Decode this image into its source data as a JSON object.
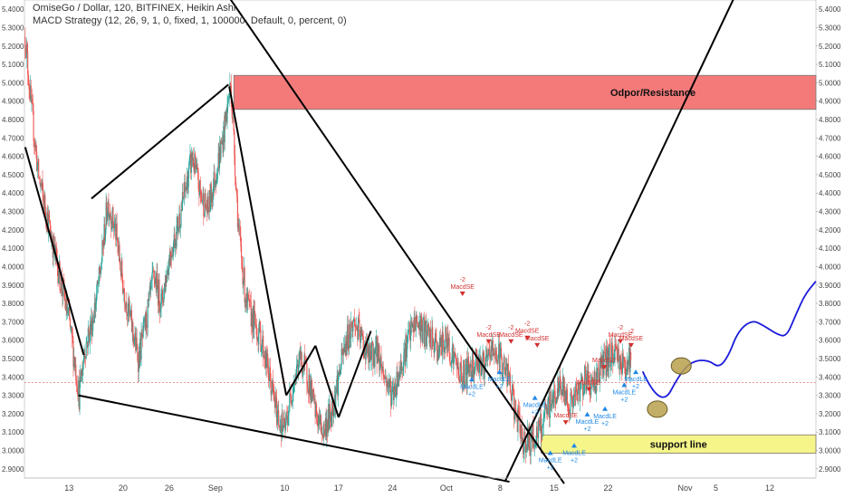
{
  "header": {
    "title": "OmiseGo / Dollar, 120, BITFINEX, Heikin Ashi",
    "indicator": "MACD Strategy (12, 26, 9, 1, 0, fixed, 1, 100000, Default, 0, percent, 0)"
  },
  "colors": {
    "up": "#26a69a",
    "down": "#ef5350",
    "resistance_zone": "#f47a7a",
    "support_zone": "#f5f58a",
    "trendline": "#000000",
    "projection": "#1a1adb",
    "highlight_circle": "#b8a04c",
    "sell_signal": "#d32f2f",
    "buy_signal": "#1e88e5",
    "price_line": "#e57373"
  },
  "chart_data": {
    "type": "candlestick",
    "ylim": [
      2.85,
      5.45
    ],
    "y_ticks": [
      "5.4000",
      "5.3000",
      "5.2000",
      "5.1000",
      "5.0000",
      "4.9000",
      "4.8000",
      "4.7000",
      "4.6000",
      "4.5000",
      "4.4000",
      "4.3000",
      "4.2000",
      "4.1000",
      "4.0000",
      "3.9000",
      "3.8000",
      "3.7000",
      "3.6000",
      "3.5000",
      "3.4000",
      "3.3000",
      "3.2000",
      "3.1000",
      "3.0000",
      "2.9000"
    ],
    "x_ticks": [
      {
        "label": "13",
        "day": 13
      },
      {
        "label": "20",
        "day": 20
      },
      {
        "label": "26",
        "day": 26
      },
      {
        "label": "Sep",
        "day": 32
      },
      {
        "label": "10",
        "day": 41
      },
      {
        "label": "17",
        "day": 48
      },
      {
        "label": "24",
        "day": 55
      },
      {
        "label": "Oct",
        "day": 62
      },
      {
        "label": "8",
        "day": 69
      },
      {
        "label": "15",
        "day": 76
      },
      {
        "label": "22",
        "day": 83
      },
      {
        "label": "Nov",
        "day": 93
      },
      {
        "label": "5",
        "day": 97
      },
      {
        "label": "12",
        "day": 104
      }
    ],
    "x_range_days": [
      7.2,
      110.0
    ],
    "price_anchors": [
      [
        7.3,
        5.25
      ],
      [
        8.0,
        4.9
      ],
      [
        9.0,
        4.5
      ],
      [
        10.0,
        4.3
      ],
      [
        11.0,
        4.1
      ],
      [
        12.0,
        3.9
      ],
      [
        13.0,
        3.7
      ],
      [
        14.0,
        3.4
      ],
      [
        14.3,
        3.3
      ],
      [
        15.0,
        3.55
      ],
      [
        16.0,
        3.7
      ],
      [
        17.0,
        3.95
      ],
      [
        18.0,
        4.35
      ],
      [
        19.0,
        4.2
      ],
      [
        20.0,
        3.9
      ],
      [
        21.0,
        3.7
      ],
      [
        22.0,
        3.5
      ],
      [
        23.0,
        3.7
      ],
      [
        24.0,
        3.95
      ],
      [
        25.0,
        3.8
      ],
      [
        26.0,
        4.05
      ],
      [
        27.0,
        4.2
      ],
      [
        28.0,
        4.4
      ],
      [
        29.0,
        4.6
      ],
      [
        30.0,
        4.4
      ],
      [
        31.0,
        4.3
      ],
      [
        32.0,
        4.5
      ],
      [
        33.0,
        4.7
      ],
      [
        34.0,
        5.0
      ],
      [
        34.5,
        4.6
      ],
      [
        35.0,
        4.2
      ],
      [
        36.0,
        3.8
      ],
      [
        37.0,
        3.7
      ],
      [
        38.0,
        3.6
      ],
      [
        39.0,
        3.4
      ],
      [
        40.0,
        3.2
      ],
      [
        41.0,
        3.1
      ],
      [
        42.0,
        3.35
      ],
      [
        43.0,
        3.5
      ],
      [
        44.0,
        3.4
      ],
      [
        45.0,
        3.2
      ],
      [
        46.0,
        3.1
      ],
      [
        47.0,
        3.2
      ],
      [
        48.0,
        3.4
      ],
      [
        49.0,
        3.6
      ],
      [
        50.0,
        3.7
      ],
      [
        51.0,
        3.6
      ],
      [
        52.0,
        3.5
      ],
      [
        53.0,
        3.55
      ],
      [
        54.0,
        3.4
      ],
      [
        55.0,
        3.3
      ],
      [
        56.0,
        3.45
      ],
      [
        57.0,
        3.6
      ],
      [
        58.0,
        3.7
      ],
      [
        59.0,
        3.65
      ],
      [
        60.0,
        3.6
      ],
      [
        61.0,
        3.55
      ],
      [
        62.0,
        3.6
      ],
      [
        63.0,
        3.5
      ],
      [
        64.0,
        3.4
      ],
      [
        65.0,
        3.45
      ],
      [
        66.0,
        3.5
      ],
      [
        67.0,
        3.45
      ],
      [
        68.0,
        3.55
      ],
      [
        69.0,
        3.5
      ],
      [
        70.0,
        3.4
      ],
      [
        71.0,
        3.2
      ],
      [
        72.0,
        3.05
      ],
      [
        73.0,
        3.05
      ],
      [
        74.0,
        3.1
      ],
      [
        75.0,
        3.2
      ],
      [
        76.0,
        3.3
      ],
      [
        77.0,
        3.35
      ],
      [
        78.0,
        3.25
      ],
      [
        79.0,
        3.3
      ],
      [
        80.0,
        3.4
      ],
      [
        81.0,
        3.35
      ],
      [
        82.0,
        3.45
      ],
      [
        83.0,
        3.5
      ],
      [
        84.0,
        3.55
      ],
      [
        85.0,
        3.45
      ],
      [
        86.0,
        3.5
      ]
    ],
    "zones": [
      {
        "name": "resistance",
        "label": "Odpor/Resistance",
        "day_from": 34.4,
        "day_to": 110.0,
        "price_from": 4.855,
        "price_to": 5.04
      },
      {
        "name": "support",
        "label": "support line",
        "day_from": 74.3,
        "day_to": 110.0,
        "price_from": 2.985,
        "price_to": 3.085
      }
    ],
    "reference_line": {
      "price": 3.37
    },
    "trendlines": [
      [
        [
          7.3,
          4.65
        ],
        [
          14.9,
          3.52
        ]
      ],
      [
        [
          14.2,
          3.3
        ],
        [
          70.2,
          2.83
        ]
      ],
      [
        [
          15.9,
          4.37
        ],
        [
          33.7,
          4.99
        ]
      ],
      [
        [
          33.8,
          4.98
        ],
        [
          41.2,
          3.3
        ]
      ],
      [
        [
          41.2,
          3.3
        ],
        [
          45.0,
          3.57
        ]
      ],
      [
        [
          45.0,
          3.57
        ],
        [
          48.0,
          3.18
        ]
      ],
      [
        [
          48.0,
          3.18
        ],
        [
          52.2,
          3.65
        ]
      ],
      [
        [
          33.2,
          5.5
        ],
        [
          77.3,
          2.82
        ]
      ],
      [
        [
          69.6,
          2.83
        ],
        [
          99.8,
          5.5
        ]
      ]
    ],
    "projection_path": [
      [
        87.5,
        3.43
      ],
      [
        89.8,
        3.22
      ],
      [
        92.5,
        3.43
      ],
      [
        94.2,
        3.49
      ],
      [
        96.1,
        3.49
      ],
      [
        97.4,
        3.45
      ],
      [
        98.6,
        3.51
      ],
      [
        99.9,
        3.65
      ],
      [
        101.7,
        3.71
      ],
      [
        103.2,
        3.68
      ],
      [
        105.0,
        3.63
      ],
      [
        106.2,
        3.62
      ],
      [
        107.4,
        3.74
      ],
      [
        108.6,
        3.85
      ],
      [
        110.0,
        3.92
      ]
    ],
    "circles": [
      [
        89.4,
        3.225
      ],
      [
        92.5,
        3.46
      ]
    ],
    "signals": [
      {
        "kind": "sell",
        "day": 64.1,
        "price": 3.84,
        "labels": [
          "-2",
          "MacdSE"
        ]
      },
      {
        "kind": "buy",
        "day": 65.3,
        "price": 3.4,
        "labels": [
          "MacdLE",
          "+2"
        ]
      },
      {
        "kind": "sell",
        "day": 67.5,
        "price": 3.58,
        "labels": [
          "-2",
          "MacdSE"
        ]
      },
      {
        "kind": "buy",
        "day": 68.9,
        "price": 3.44,
        "labels": [
          "MacdLE",
          "+2"
        ]
      },
      {
        "kind": "sell",
        "day": 70.4,
        "price": 3.58,
        "labels": [
          "-2",
          "MacdSE"
        ]
      },
      {
        "kind": "sell",
        "day": 72.5,
        "price": 3.6,
        "labels": [
          "-2",
          "MacdSE"
        ]
      },
      {
        "kind": "sell",
        "day": 73.8,
        "price": 3.56,
        "labels": [
          "MacdSE"
        ]
      },
      {
        "kind": "buy",
        "day": 73.5,
        "price": 3.3,
        "labels": [
          "MacdLE",
          "+2"
        ]
      },
      {
        "kind": "sell",
        "day": 77.5,
        "price": 3.14,
        "labels": [
          "MacdSE"
        ]
      },
      {
        "kind": "buy",
        "day": 75.5,
        "price": 3.0,
        "labels": [
          "MacdLE",
          "+2"
        ]
      },
      {
        "kind": "buy",
        "day": 78.6,
        "price": 3.04,
        "labels": [
          "MacdLE",
          "+2"
        ]
      },
      {
        "kind": "sell",
        "day": 80.5,
        "price": 3.32,
        "labels": [
          "-2",
          "MacdSE"
        ]
      },
      {
        "kind": "buy",
        "day": 80.3,
        "price": 3.21,
        "labels": [
          "MacdLE",
          "+2"
        ]
      },
      {
        "kind": "sell",
        "day": 82.5,
        "price": 3.44,
        "labels": [
          "MacdSE"
        ]
      },
      {
        "kind": "buy",
        "day": 82.6,
        "price": 3.24,
        "labels": [
          "MacdLE",
          "+2"
        ]
      },
      {
        "kind": "sell",
        "day": 84.6,
        "price": 3.58,
        "labels": [
          "-2",
          "MacdSE"
        ]
      },
      {
        "kind": "sell",
        "day": 86.0,
        "price": 3.56,
        "labels": [
          "-2",
          "MacdSE"
        ]
      },
      {
        "kind": "buy",
        "day": 85.1,
        "price": 3.37,
        "labels": [
          "MacdLE",
          "+2"
        ]
      },
      {
        "kind": "buy",
        "day": 86.6,
        "price": 3.44,
        "labels": [
          "MacdLE",
          "+2"
        ]
      }
    ]
  }
}
